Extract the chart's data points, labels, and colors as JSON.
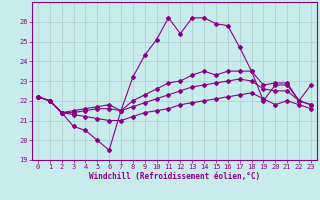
{
  "xlabel": "Windchill (Refroidissement éolien,°C)",
  "xlim": [
    -0.5,
    23.5
  ],
  "ylim": [
    19,
    27
  ],
  "yticks": [
    19,
    20,
    21,
    22,
    23,
    24,
    25,
    26
  ],
  "xticks": [
    0,
    1,
    2,
    3,
    4,
    5,
    6,
    7,
    8,
    9,
    10,
    11,
    12,
    13,
    14,
    15,
    16,
    17,
    18,
    19,
    20,
    21,
    22,
    23
  ],
  "background_color": "#c8ecec",
  "grid_color": "#aacccc",
  "line_color": "#880088",
  "line1": [
    22.2,
    22.0,
    21.4,
    20.7,
    20.5,
    20.0,
    19.5,
    21.5,
    23.2,
    24.3,
    25.1,
    26.2,
    25.4,
    26.2,
    26.2,
    25.9,
    25.8,
    24.7,
    23.5,
    22.0,
    22.8,
    22.8,
    22.0,
    21.8
  ],
  "line2": [
    22.2,
    22.0,
    21.4,
    21.5,
    21.6,
    21.7,
    21.8,
    21.5,
    22.0,
    22.3,
    22.6,
    22.9,
    23.0,
    23.3,
    23.5,
    23.3,
    23.5,
    23.5,
    23.5,
    22.8,
    22.9,
    22.9,
    22.0,
    22.8
  ],
  "line3": [
    22.2,
    22.0,
    21.4,
    21.4,
    21.5,
    21.6,
    21.6,
    21.5,
    21.7,
    21.9,
    22.1,
    22.3,
    22.5,
    22.7,
    22.8,
    22.9,
    23.0,
    23.1,
    23.0,
    22.6,
    22.5,
    22.5,
    22.0,
    21.8
  ],
  "line4": [
    22.2,
    22.0,
    21.4,
    21.3,
    21.2,
    21.1,
    21.0,
    21.0,
    21.2,
    21.4,
    21.5,
    21.6,
    21.8,
    21.9,
    22.0,
    22.1,
    22.2,
    22.3,
    22.4,
    22.1,
    21.8,
    22.0,
    21.8,
    21.6
  ],
  "font_size_ticks": 5,
  "font_size_xlabel": 5.5,
  "marker_size": 2.0,
  "line_width": 0.8
}
